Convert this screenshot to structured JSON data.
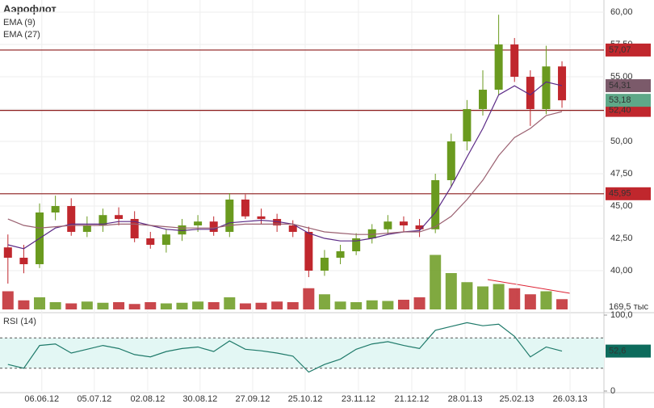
{
  "chart_data": {
    "type": "candlestick",
    "title": "Аэрофлот",
    "xlim": [
      -0.5,
      37.65
    ],
    "xticks": [
      {
        "value": 2.14,
        "label": "06.06.12"
      },
      {
        "value": 5.46,
        "label": "05.07.12"
      },
      {
        "value": 8.83,
        "label": "02.08.12"
      },
      {
        "value": 12.14,
        "label": "30.08.12"
      },
      {
        "value": 15.46,
        "label": "27.09.12"
      },
      {
        "value": 18.78,
        "label": "25.10.12"
      },
      {
        "value": 22.14,
        "label": "23.11.12"
      },
      {
        "value": 25.51,
        "label": "21.12.12"
      },
      {
        "value": 28.88,
        "label": "28.01.13"
      },
      {
        "value": 32.14,
        "label": "25.02.13"
      },
      {
        "value": 35.51,
        "label": "26.03.13"
      }
    ],
    "ylim": [
      36.875,
      60.94
    ],
    "yticks": [
      {
        "value": 40,
        "label": "40,00"
      },
      {
        "value": 42.5,
        "label": "42,50"
      },
      {
        "value": 45,
        "label": "45,00"
      },
      {
        "value": 47.5,
        "label": "47,50"
      },
      {
        "value": 50,
        "label": "50,00"
      },
      {
        "value": 52.5,
        "label": "52,50"
      },
      {
        "value": 55,
        "label": "55,00"
      },
      {
        "value": 57.5,
        "label": "57,50"
      },
      {
        "value": 60,
        "label": "60,00"
      }
    ],
    "up_color": "#6a9a1f",
    "down_color": "#c0272d",
    "open": [
      41.8,
      41,
      40.5,
      44.5,
      45,
      43,
      43.5,
      44.3,
      44,
      42.5,
      42,
      42.8,
      43.5,
      43.8,
      43,
      45.5,
      44.2,
      44,
      43.5,
      43,
      40,
      41,
      41.5,
      42.5,
      43.2,
      43.8,
      43.5,
      43.2,
      47,
      50,
      52.5,
      54,
      57.5,
      55,
      52.5,
      55.8
    ],
    "high": [
      42.8,
      42,
      45.2,
      45.8,
      45.6,
      44.2,
      44.8,
      44.9,
      44.6,
      43,
      43.2,
      44,
      44.3,
      44.2,
      46,
      45.9,
      44.8,
      44.4,
      43.9,
      43.4,
      41.6,
      42,
      42.9,
      43.6,
      44.3,
      44.2,
      44,
      47.5,
      50.6,
      53.2,
      55.5,
      59.8,
      58,
      55.5,
      57.4,
      56.2
    ],
    "low": [
      39,
      39.8,
      40.2,
      43.9,
      42.7,
      42.6,
      43,
      43.5,
      42.2,
      41.7,
      41.4,
      42.3,
      43,
      42.7,
      42.6,
      44,
      43.6,
      43,
      42.6,
      39.5,
      39.6,
      40.5,
      41.2,
      42.1,
      42.8,
      43,
      42.6,
      42.9,
      46.5,
      49.3,
      52,
      53.6,
      54.6,
      51.2,
      52.1,
      52.6
    ],
    "close": [
      41,
      40.5,
      44.5,
      45,
      43,
      43.5,
      44.3,
      44,
      42.5,
      42,
      42.8,
      43.5,
      43.8,
      43,
      45.5,
      44.2,
      44,
      43.5,
      43,
      40,
      41,
      41.5,
      42.5,
      43.2,
      43.8,
      43.5,
      43.2,
      47,
      50,
      52.5,
      54,
      57.5,
      55,
      52.5,
      55.8,
      53.18
    ],
    "series": [
      {
        "name": "EMA (9)",
        "color": "#5b2a86",
        "values": [
          42,
          41.7,
          42.5,
          43.3,
          43.6,
          43.6,
          43.6,
          43.8,
          43.8,
          43.5,
          43.2,
          43.1,
          43.2,
          43.2,
          43.7,
          43.8,
          43.9,
          43.8,
          43.6,
          42.9,
          42.5,
          42.3,
          42.3,
          42.5,
          42.8,
          43,
          43.1,
          44.5,
          46.5,
          48.8,
          51,
          53.6,
          54.3,
          53.6,
          54.6,
          54.31
        ]
      },
      {
        "name": "EMA (27)",
        "color": "#9a6070",
        "values": [
          44,
          43.5,
          43.3,
          43.4,
          43.5,
          43.5,
          43.5,
          43.6,
          43.6,
          43.5,
          43.4,
          43.3,
          43.3,
          43.3,
          43.5,
          43.6,
          43.6,
          43.6,
          43.6,
          43.3,
          43,
          42.9,
          42.8,
          42.8,
          42.9,
          43,
          43,
          43.4,
          44.2,
          45.5,
          47,
          48.9,
          50.3,
          51,
          52,
          52.3
        ]
      }
    ],
    "levels": [
      {
        "value": 57.07,
        "label": "57,07"
      },
      {
        "value": 52.4,
        "label": "52,40"
      },
      {
        "value": 45.95,
        "label": "45,95"
      }
    ],
    "tags": [
      {
        "value": 54.31,
        "label": "54,31",
        "color": "#7b5a6a"
      },
      {
        "value": 53.18,
        "label": "53,18",
        "color": "#5ea888"
      }
    ],
    "volume": {
      "ylim": [
        0,
        1000
      ],
      "values": [
        300,
        150,
        200,
        120,
        100,
        130,
        110,
        120,
        90,
        120,
        100,
        110,
        130,
        120,
        200,
        100,
        110,
        130,
        120,
        350,
        250,
        130,
        120,
        150,
        140,
        160,
        200,
        900,
        600,
        450,
        380,
        420,
        350,
        250,
        300,
        169.5
      ],
      "last_label": "169,5 тыс"
    },
    "rsi": {
      "name": "RSI (14)",
      "color": "#1f7a6a",
      "ylim": [
        0,
        100
      ],
      "yticks": [
        {
          "value": 100,
          "label": "100,0"
        },
        0
      ],
      "bands": [
        30,
        70
      ],
      "value_label": "52,6",
      "values": [
        35,
        30,
        60,
        62,
        50,
        55,
        60,
        56,
        48,
        45,
        52,
        56,
        58,
        52,
        66,
        55,
        53,
        50,
        46,
        25,
        35,
        42,
        55,
        62,
        65,
        60,
        56,
        80,
        85,
        90,
        86,
        88,
        72,
        45,
        58,
        52.6
      ]
    }
  }
}
